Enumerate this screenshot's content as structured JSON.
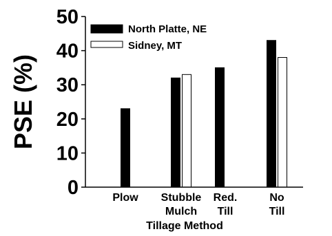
{
  "chart_data": {
    "type": "bar",
    "xlabel": "Tillage Method",
    "ylabel": "PSE (%)",
    "ylim": [
      0,
      50
    ],
    "yticks": [
      0,
      10,
      20,
      30,
      40,
      50
    ],
    "categories": [
      [
        "Plow"
      ],
      [
        "Stubble",
        "Mulch"
      ],
      [
        "Red.",
        "Till"
      ],
      [
        "No",
        "Till"
      ]
    ],
    "series": [
      {
        "name": "North Platte, NE",
        "color": "#000000",
        "values": [
          23,
          32,
          35,
          43
        ]
      },
      {
        "name": "Sidney, MT",
        "color": "#ffffff",
        "values": [
          null,
          33,
          null,
          38
        ]
      }
    ],
    "legend_position": "top-left"
  }
}
